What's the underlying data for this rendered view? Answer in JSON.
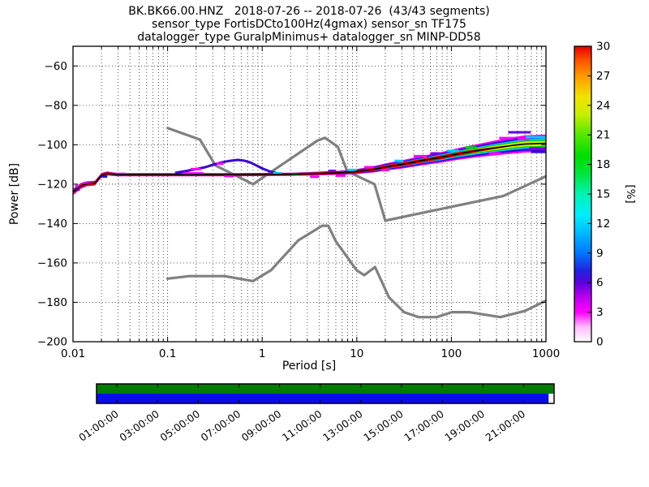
{
  "title": {
    "line1": "BK.BK66.00.HNZ   2018-07-26 -- 2018-07-26  (43/43 segments)",
    "line2": "sensor_type FortisDCto100Hz(4gmax) sensor_sn TF175",
    "line3": "datalogger_type GuralpMinimus+ datalogger_sn MINP-DD58"
  },
  "chart_data": {
    "type": "heatmap",
    "title": "BK.BK66.00.HNZ   2018-07-26 -- 2018-07-26  (43/43 segments)",
    "xlabel": "Period [s]",
    "ylabel": "Power [dB]",
    "xscale": "log",
    "xlim": [
      0.01,
      1000
    ],
    "ylim": [
      -200,
      -50
    ],
    "x_ticks": [
      0.01,
      0.1,
      1,
      10,
      100,
      1000
    ],
    "x_tick_labels": [
      "0.01",
      "0.1",
      "1",
      "10",
      "100",
      "1000"
    ],
    "y_ticks": [
      -200,
      -180,
      -160,
      -140,
      -120,
      -100,
      -80,
      -60
    ],
    "y_tick_labels": [
      "−200",
      "−180",
      "−160",
      "−140",
      "−120",
      "−100",
      "−80",
      "−60"
    ],
    "grid": true,
    "colorbar": {
      "label": "[%]",
      "min": 0,
      "max": 30,
      "ticks": [
        0,
        3,
        6,
        9,
        12,
        15,
        18,
        21,
        24,
        27,
        30
      ],
      "gradient_stops": [
        [
          0.0,
          "#ffffff"
        ],
        [
          0.05,
          "#ffbbff"
        ],
        [
          0.1,
          "#ff00ff"
        ],
        [
          0.15,
          "#bb00ee"
        ],
        [
          0.2,
          "#5a00dd"
        ],
        [
          0.24,
          "#2222dd"
        ],
        [
          0.3,
          "#0077ff"
        ],
        [
          0.37,
          "#00bbff"
        ],
        [
          0.43,
          "#00eeff"
        ],
        [
          0.5,
          "#00f2b0"
        ],
        [
          0.57,
          "#00e53c"
        ],
        [
          0.63,
          "#00dd00"
        ],
        [
          0.7,
          "#55e600"
        ],
        [
          0.77,
          "#c8ee00"
        ],
        [
          0.83,
          "#f2e200"
        ],
        [
          0.9,
          "#ff9900"
        ],
        [
          0.95,
          "#ff5500"
        ],
        [
          1.0,
          "#e60000"
        ]
      ]
    },
    "psd_ridge": {
      "comment": "mode of PSD probability histogram vs period; spread = half-width of colored band in dB",
      "periods": [
        0.01,
        0.012,
        0.014,
        0.017,
        0.02,
        0.023,
        0.03,
        0.05,
        0.1,
        0.2,
        0.5,
        1,
        2,
        3,
        5,
        7,
        10,
        15,
        22,
        30,
        50,
        80,
        120,
        200,
        300,
        450,
        600,
        1000
      ],
      "mode_db": [
        -124,
        -121,
        -119.8,
        -119.5,
        -115.5,
        -114.6,
        -115.2,
        -115.2,
        -115.2,
        -115.2,
        -115.2,
        -115.1,
        -115,
        -114.8,
        -114.4,
        -114.2,
        -113.6,
        -112.5,
        -111,
        -110,
        -108,
        -106.3,
        -104.6,
        -102.8,
        -101.5,
        -100.3,
        -99.6,
        -99.3
      ],
      "spread_db": [
        1.6,
        1.5,
        1.3,
        1.2,
        1.2,
        1.0,
        0.8,
        0.8,
        0.8,
        0.8,
        0.8,
        0.8,
        0.8,
        0.9,
        1.0,
        1.1,
        1.3,
        1.6,
        1.9,
        2.1,
        2.4,
        2.7,
        3.0,
        3.4,
        3.8,
        4.2,
        4.4,
        4.5
      ],
      "red_halfwidth_db": [
        1.1,
        1.0,
        0.9,
        0.9,
        0.9,
        0.7,
        0.55,
        0.55,
        0.55,
        0.55,
        0.55,
        0.55,
        0.55,
        0.6,
        0.65,
        0.7,
        0.75,
        0.85,
        0.95,
        1.0,
        1.0,
        1.0,
        0.9,
        0.7,
        0.45,
        0.2,
        0.05,
        0.05
      ]
    },
    "layer_colors": {
      "magenta": "#ee00ee",
      "blue": "#3300dd",
      "cyan": "#00ccff",
      "green": "#00cc00",
      "yellow": "#ccee00",
      "red": "#ee0000",
      "mode_line": "#000000"
    },
    "layer_fractions": {
      "blue": 0.78,
      "cyan": 0.55,
      "green": 0.4,
      "yellow": 0.28
    },
    "secondary_branch": {
      "color": "#3a00d5",
      "points": [
        [
          0.12,
          -114.3
        ],
        [
          0.15,
          -113.5
        ],
        [
          0.2,
          -112.4
        ],
        [
          0.25,
          -111.4
        ],
        [
          0.3,
          -110.2
        ],
        [
          0.37,
          -109.0
        ],
        [
          0.45,
          -108.2
        ],
        [
          0.55,
          -107.7
        ],
        [
          0.65,
          -108.1
        ],
        [
          0.75,
          -109.0
        ],
        [
          0.85,
          -110.3
        ],
        [
          1.0,
          -112.0
        ],
        [
          1.2,
          -113.5
        ],
        [
          1.5,
          -114.7
        ]
      ]
    },
    "histogram_cells": [
      [
        0.01,
        0.0118,
        -122.8,
        "#7a00e6"
      ],
      [
        0.0105,
        0.0125,
        -120.9,
        "#ff00ff"
      ],
      [
        0.0128,
        0.016,
        -119.4,
        "#ff00ff"
      ],
      [
        0.0195,
        0.023,
        -116.1,
        "#2a00d5"
      ],
      [
        0.028,
        0.036,
        -114.8,
        "#ff00ff"
      ],
      [
        0.15,
        0.24,
        -114.55,
        "#ff00ff"
      ],
      [
        0.175,
        0.225,
        -112.35,
        "#ff00ff"
      ],
      [
        0.33,
        0.39,
        -109.6,
        "#ff00ff"
      ],
      [
        0.4,
        0.5,
        -115.9,
        "#ff00ff"
      ],
      [
        1.3,
        1.6,
        -114.45,
        "#00ccff"
      ],
      [
        2.0,
        2.45,
        -114.95,
        "#00cc00"
      ],
      [
        3.2,
        4.0,
        -116.25,
        "#ff00ff"
      ],
      [
        5.0,
        6.0,
        -113.25,
        "#7a00e6"
      ],
      [
        6.0,
        7.6,
        -115.7,
        "#ff00ff"
      ],
      [
        8.0,
        10.0,
        -112.8,
        "#00ccff"
      ],
      [
        12.0,
        15.0,
        -111.4,
        "#ff00ff"
      ],
      [
        18.0,
        22.0,
        -112.9,
        "#ff00ff"
      ],
      [
        25.0,
        31.0,
        -108.2,
        "#00ccff"
      ],
      [
        40.0,
        55.0,
        -105.8,
        "#ff00ff"
      ],
      [
        60.0,
        76.0,
        -104.4,
        "#7a00e6"
      ],
      [
        90.0,
        120,
        -103.1,
        "#00ccff"
      ],
      [
        140,
        185,
        -101.4,
        "#00cc00"
      ],
      [
        250,
        335,
        -104.4,
        "#ff00ff"
      ],
      [
        320,
        455,
        -96.6,
        "#ff00ff"
      ],
      [
        500,
        660,
        -97.1,
        "#ff00ff"
      ],
      [
        400,
        690,
        -93.7,
        "#5a00dd"
      ],
      [
        610,
        1000,
        -96.2,
        "#00ccff"
      ],
      [
        660,
        1000,
        -101.9,
        "#7a00e6"
      ],
      [
        700,
        1000,
        -103.6,
        "#2a00d5"
      ]
    ],
    "noise_models": {
      "color": "#808080",
      "nhnm": [
        [
          0.1,
          -91.5
        ],
        [
          0.22,
          -97.4
        ],
        [
          0.32,
          -110.5
        ],
        [
          0.8,
          -120
        ],
        [
          3.8,
          -98
        ],
        [
          4.6,
          -96.5
        ],
        [
          6.3,
          -101
        ],
        [
          7.9,
          -113.5
        ],
        [
          15.4,
          -120
        ],
        [
          20,
          -138.5
        ],
        [
          354.8,
          -126
        ],
        [
          1000,
          -116
        ]
      ],
      "nlnm": [
        [
          0.1,
          -168
        ],
        [
          0.17,
          -166.7
        ],
        [
          0.4,
          -166.7
        ],
        [
          0.8,
          -169.2
        ],
        [
          1.24,
          -163.7
        ],
        [
          2.4,
          -148.6
        ],
        [
          4.3,
          -141.1
        ],
        [
          5,
          -141.1
        ],
        [
          6,
          -149
        ],
        [
          10,
          -163.8
        ],
        [
          12,
          -166.2
        ],
        [
          15.6,
          -162.1
        ],
        [
          21.9,
          -177.5
        ],
        [
          31.6,
          -185
        ],
        [
          45,
          -187.5
        ],
        [
          70,
          -187.5
        ],
        [
          101,
          -185
        ],
        [
          154,
          -185
        ],
        [
          328,
          -187.5
        ],
        [
          600,
          -184.4
        ],
        [
          1000,
          -179.2
        ]
      ]
    }
  },
  "timeline": {
    "range_bar_color": "#007d00",
    "data_bar_color": "#0a0aee",
    "data_coverage_fraction": [
      [
        0,
        0.988
      ]
    ],
    "span_hours": [
      0,
      22.5
    ],
    "tick_hours": [
      1,
      3,
      5,
      7,
      9,
      11,
      13,
      15,
      17,
      19,
      21
    ],
    "tick_labels": [
      "01:00:00",
      "03:00:00",
      "05:00:00",
      "07:00:00",
      "09:00:00",
      "11:00:00",
      "13:00:00",
      "15:00:00",
      "17:00:00",
      "19:00:00",
      "21:00:00"
    ]
  }
}
